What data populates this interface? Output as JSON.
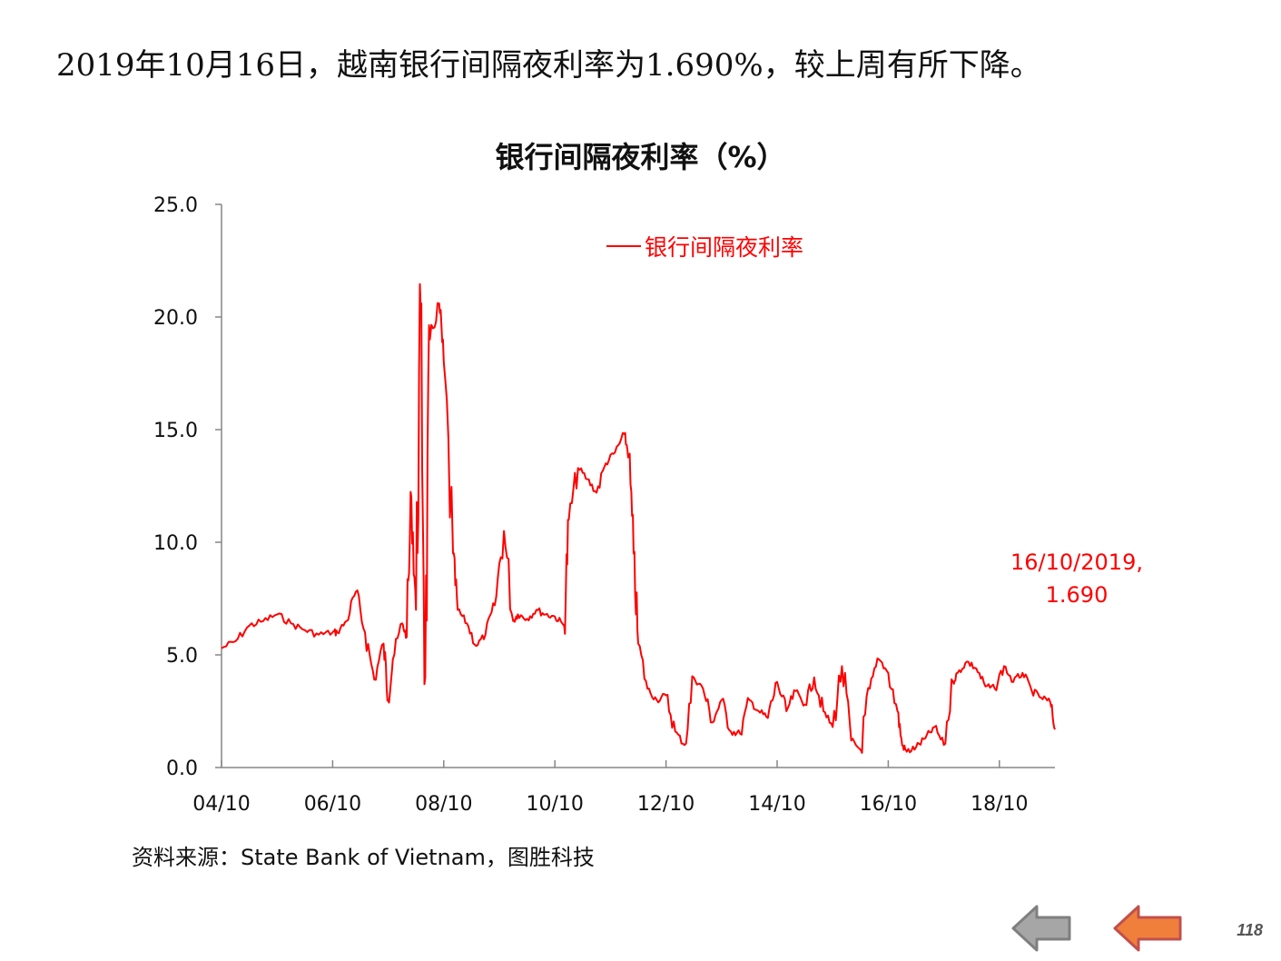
{
  "page": {
    "headline": "2019年10月16日，越南银行间隔夜利率为1.690%，较上周有所下降。",
    "source_note": "资料来源：State Bank of Vietnam，图胜科技",
    "page_number": "118",
    "nav": {
      "back_color": "#a6a6a6",
      "forward_color": "#f07f3c"
    }
  },
  "chart_data": {
    "type": "line",
    "title": "银行间隔夜利率（%）",
    "xlabel": "",
    "ylabel": "",
    "ylim": [
      0,
      25
    ],
    "yticks": [
      "0.0",
      "5.0",
      "10.0",
      "15.0",
      "20.0",
      "25.0"
    ],
    "xlim": [
      "2004-10",
      "2019-10"
    ],
    "xticks": [
      {
        "label": "04/10",
        "x": "2004-10"
      },
      {
        "label": "06/10",
        "x": "2006-10"
      },
      {
        "label": "08/10",
        "x": "2008-10"
      },
      {
        "label": "10/10",
        "x": "2010-10"
      },
      {
        "label": "12/10",
        "x": "2012-10"
      },
      {
        "label": "14/10",
        "x": "2014-10"
      },
      {
        "label": "16/10",
        "x": "2016-10"
      },
      {
        "label": "18/10",
        "x": "2018-10"
      }
    ],
    "grid": false,
    "legend": "top-center",
    "series": [
      {
        "name": "银行间隔夜利率",
        "color": "#ff0000",
        "x": [
          "2004-10",
          "2005-01",
          "2005-04",
          "2005-07",
          "2005-10",
          "2006-01",
          "2006-04",
          "2006-07",
          "2006-10",
          "2006-11",
          "2007-01",
          "2007-03",
          "2007-05",
          "2007-07",
          "2007-09",
          "2007-10",
          "2007-11",
          "2008-01",
          "2008-02",
          "2008-03",
          "2008-04",
          "2008-05",
          "2008-06",
          "2008-07",
          "2008-09",
          "2008-10",
          "2008-12",
          "2009-01",
          "2009-03",
          "2009-05",
          "2009-07",
          "2009-09",
          "2009-11",
          "2010-01",
          "2010-02",
          "2010-04",
          "2010-06",
          "2010-08",
          "2010-10",
          "2010-12",
          "2011-01",
          "2011-03",
          "2011-05",
          "2011-07",
          "2011-09",
          "2011-11",
          "2012-01",
          "2012-02",
          "2012-03",
          "2012-04",
          "2012-06",
          "2012-08",
          "2012-10",
          "2012-12",
          "2013-02",
          "2013-04",
          "2013-06",
          "2013-08",
          "2013-10",
          "2013-12",
          "2014-02",
          "2014-04",
          "2014-06",
          "2014-08",
          "2014-10",
          "2014-12",
          "2015-02",
          "2015-04",
          "2015-06",
          "2015-08",
          "2015-10",
          "2015-12",
          "2016-02",
          "2016-04",
          "2016-06",
          "2016-08",
          "2016-10",
          "2016-12",
          "2017-01",
          "2017-02",
          "2017-04",
          "2017-06",
          "2017-08",
          "2017-10",
          "2017-12",
          "2018-01",
          "2018-03",
          "2018-05",
          "2018-07",
          "2018-09",
          "2018-11",
          "2019-01",
          "2019-03",
          "2019-05",
          "2019-07",
          "2019-09",
          "2019-10"
        ],
        "values": [
          5.3,
          5.6,
          6.3,
          6.5,
          6.8,
          6.4,
          6.1,
          5.9,
          6.0,
          6.0,
          6.5,
          7.8,
          6.0,
          3.9,
          5.5,
          3.0,
          4.8,
          6.4,
          5.8,
          12.0,
          7.0,
          20.5,
          4.0,
          19.0,
          20.6,
          18.0,
          9.5,
          7.0,
          6.4,
          5.4,
          5.9,
          7.2,
          10.5,
          6.5,
          6.8,
          6.6,
          7.0,
          6.8,
          6.7,
          6.3,
          11.0,
          13.3,
          12.8,
          12.2,
          13.5,
          14.0,
          14.8,
          13.8,
          9.5,
          5.5,
          3.5,
          3.0,
          3.2,
          1.6,
          1.0,
          4.0,
          3.5,
          2.0,
          3.0,
          1.6,
          1.5,
          3.0,
          2.5,
          2.2,
          3.8,
          2.5,
          3.4,
          2.8,
          4.0,
          2.5,
          1.8,
          4.5,
          1.2,
          0.8,
          3.5,
          4.8,
          4.2,
          2.5,
          1.0,
          0.7,
          0.9,
          1.3,
          1.8,
          1.0,
          3.8,
          4.2,
          4.7,
          4.4,
          3.6,
          3.5,
          4.5,
          3.8,
          4.2,
          3.4,
          3.1,
          2.9,
          1.69
        ]
      }
    ],
    "annotations": [
      {
        "text": "16/10/2019,",
        "x": "2019-10",
        "y": 1.69
      },
      {
        "text": "1.690",
        "x": "2019-10",
        "y": 1.69
      }
    ]
  }
}
